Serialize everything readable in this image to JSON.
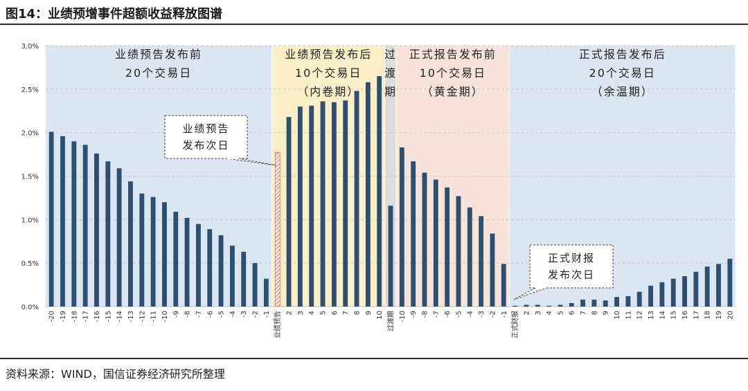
{
  "header": {
    "title": "图14：业绩预增事件超额收益释放图谱"
  },
  "footer": {
    "source": "资料来源：WIND，国信证券经济研究所整理"
  },
  "colors": {
    "bar": "#2f4f6f",
    "bar_event": "#e8664a",
    "zone_blue": "#dbe6f3",
    "zone_yellow": "#fbefc8",
    "zone_gray": "#dcdcdc",
    "zone_peach": "#f7e3da",
    "grid": "#c8c8c8"
  },
  "chart_data": {
    "type": "bar",
    "ylim": [
      0,
      3.0
    ],
    "ytick_values": [
      0,
      0.5,
      1.0,
      1.5,
      2.0,
      2.5,
      3.0
    ],
    "ytick_labels": [
      "0.0%",
      "0.5%",
      "1.0%",
      "1.5%",
      "2.0%",
      "2.5%",
      "3.0%"
    ],
    "grid": true,
    "categories": [
      "-20",
      "-19",
      "-18",
      "-17",
      "-16",
      "-15",
      "-14",
      "-13",
      "-12",
      "-11",
      "-10",
      "-9",
      "-8",
      "-7",
      "-6",
      "-5",
      "-4",
      "-3",
      "-2",
      "-1",
      "业绩预告",
      "2",
      "3",
      "4",
      "5",
      "6",
      "7",
      "8",
      "9",
      "10",
      "过渡期",
      "-10",
      "-9",
      "-8",
      "-7",
      "-6",
      "-5",
      "-4",
      "-3",
      "-2",
      "-1",
      "正式财报",
      "2",
      "3",
      "4",
      "5",
      "6",
      "7",
      "8",
      "9",
      "10",
      "11",
      "12",
      "13",
      "14",
      "15",
      "16",
      "17",
      "18",
      "19",
      "20"
    ],
    "values": [
      2.01,
      1.96,
      1.9,
      1.86,
      1.76,
      1.67,
      1.59,
      1.44,
      1.3,
      1.26,
      1.2,
      1.09,
      1.02,
      0.95,
      0.89,
      0.82,
      0.7,
      0.63,
      0.5,
      0.32,
      1.77,
      2.18,
      2.3,
      2.31,
      2.36,
      2.35,
      2.37,
      2.48,
      2.58,
      2.65,
      1.16,
      1.83,
      1.67,
      1.54,
      1.46,
      1.37,
      1.27,
      1.14,
      1.04,
      0.84,
      0.49,
      0.01,
      0.02,
      0.02,
      0.01,
      0.02,
      0.04,
      0.08,
      0.08,
      0.07,
      0.11,
      0.12,
      0.17,
      0.24,
      0.28,
      0.32,
      0.35,
      0.4,
      0.46,
      0.49,
      0.55
    ],
    "highlight_index": 20,
    "zones": [
      {
        "name": "pre-forecast",
        "color_key": "zone_blue",
        "from": 0,
        "to": 19,
        "lines": [
          "业绩预告发布前",
          "20个交易日"
        ]
      },
      {
        "name": "post-forecast",
        "color_key": "zone_yellow",
        "from": 20,
        "to": 29,
        "lines": [
          "业绩预告发布后",
          "10个交易日",
          "（内卷期）"
        ]
      },
      {
        "name": "transition",
        "color_key": "zone_gray",
        "from": 30,
        "to": 30,
        "lines": [
          "过",
          "渡",
          "期"
        ]
      },
      {
        "name": "pre-report",
        "color_key": "zone_peach",
        "from": 31,
        "to": 40,
        "lines": [
          "正式报告发布前",
          "10个交易日",
          "（黄金期）"
        ]
      },
      {
        "name": "post-report",
        "color_key": "zone_blue",
        "from": 41,
        "to": 60,
        "lines": [
          "正式报告发布后",
          "20个交易日",
          "（余温期）"
        ]
      }
    ],
    "callouts": [
      {
        "name": "forecast-next-day",
        "lines": [
          "业绩预告",
          "发布次日"
        ],
        "target_index": 20
      },
      {
        "name": "report-next-day",
        "lines": [
          "正式财报",
          "发布次日"
        ],
        "target_index": 41
      }
    ]
  }
}
